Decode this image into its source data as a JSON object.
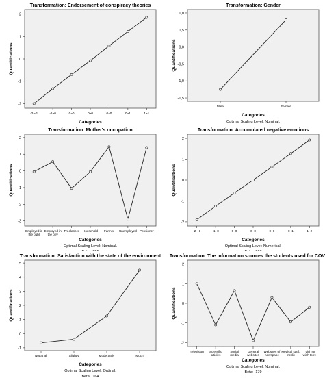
{
  "chart_data": [
    {
      "type": "line",
      "title": "Transformation: Endorsement of conspiracy theories",
      "xlabel": "Categories",
      "ylabel": "Quantifications",
      "categories": [
        "-2~-1",
        "-1~0",
        "0~0",
        "0~0",
        "0~0",
        "0~1",
        "1~1"
      ],
      "values": [
        -2.0,
        -1.33,
        -0.7,
        -0.08,
        0.58,
        1.22,
        1.85
      ],
      "ylim": [
        -2.2,
        2.2
      ],
      "yticks": [
        "-2",
        "-1",
        "0",
        "1",
        "2"
      ],
      "yticks_values": [
        -2,
        -1,
        0,
        1,
        2
      ],
      "footer": []
    },
    {
      "type": "line",
      "title": "Transformation: Gender",
      "xlabel": "Categories",
      "ylabel": "Quantifications",
      "categories": [
        "Male",
        "Female"
      ],
      "values": [
        -1.25,
        0.8
      ],
      "ylim": [
        -1.6,
        1.1
      ],
      "yticks": [
        "-1,5",
        "-1,0",
        "-0,5",
        "0,0",
        "0,5",
        "1,0"
      ],
      "yticks_values": [
        -1.5,
        -1.0,
        -0.5,
        0.0,
        0.5,
        1.0
      ],
      "footer": [
        "Optimal Scaling Level: Nominal."
      ]
    },
    {
      "type": "line",
      "title": "Transformation: Mother's occupation",
      "xlabel": "Categories",
      "ylabel": "Quantifications",
      "categories": [
        "Employed in the publ",
        "Employed in the priv",
        "Freelancer",
        "Household",
        "Farmer",
        "Unemployed",
        "Pensioner"
      ],
      "values": [
        -0.05,
        0.55,
        -1.05,
        -0.05,
        1.45,
        -2.9,
        1.4
      ],
      "ylim": [
        -3.3,
        2.2
      ],
      "yticks": [
        "-3",
        "-2",
        "-1",
        "0",
        "1",
        "2"
      ],
      "yticks_values": [
        -3,
        -2,
        -1,
        0,
        1,
        2
      ],
      "footer": [
        "Optimal Scaling Level: Nominal.",
        "Beta: .255"
      ]
    },
    {
      "type": "line",
      "title": "Transformation: Accumulated negative emotions",
      "xlabel": "Categories",
      "ylabel": "Quantifications",
      "categories": [
        "-2~-1",
        "-1~0",
        "0~0",
        "0~0",
        "0~0",
        "0~1",
        "1~2"
      ],
      "values": [
        -1.9,
        -1.25,
        -0.62,
        0.0,
        0.63,
        1.27,
        1.92
      ],
      "ylim": [
        -2.2,
        2.2
      ],
      "yticks": [
        "-2",
        "-1",
        "0",
        "1",
        "2"
      ],
      "yticks_values": [
        -2,
        -1,
        0,
        1,
        2
      ],
      "footer": [
        "Optimal Scaling Level: Numerical.",
        "Beta: .268"
      ]
    },
    {
      "type": "line",
      "title": "Transformation: Satisfaction with the state of the environment",
      "xlabel": "Categories",
      "ylabel": "Quantifications",
      "categories": [
        "Not at all",
        "Slightly",
        "Moderately",
        "Much"
      ],
      "values": [
        -0.65,
        -0.4,
        1.25,
        4.5
      ],
      "ylim": [
        -1.2,
        5.2
      ],
      "yticks": [
        "-1",
        "0",
        "1",
        "2",
        "3",
        "4",
        "5"
      ],
      "yticks_values": [
        -1,
        0,
        1,
        2,
        3,
        4,
        5
      ],
      "footer": [
        "Optimal Scaling Level: Ordinal.",
        "Beta: .164"
      ]
    },
    {
      "type": "line",
      "title": "Transformation: The information sources the students used for COVID-19",
      "xlabel": "Categories",
      "ylabel": "Quantifications",
      "categories": [
        "Television",
        "Scientific articles",
        "Social media",
        "General websites",
        "Websites of newspape",
        "Medical staff, medic",
        "I did not wish to re"
      ],
      "values": [
        1.0,
        -1.1,
        0.65,
        -1.9,
        0.3,
        -0.95,
        -0.2
      ],
      "ylim": [
        -2.2,
        2.2
      ],
      "yticks": [
        "-2",
        "-1",
        "0",
        "1",
        "2"
      ],
      "yticks_values": [
        -2,
        -1,
        0,
        1,
        2
      ],
      "footer": [
        "Optimal Scaling Level: Nominal.",
        "Beta: .179"
      ]
    }
  ]
}
